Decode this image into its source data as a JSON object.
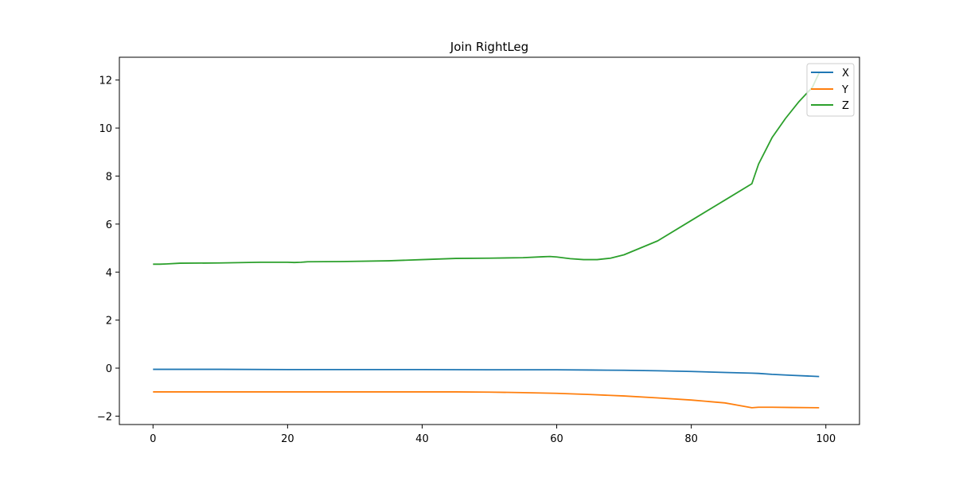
{
  "chart_data": {
    "type": "line",
    "title": "Join RightLeg",
    "xlabel": "",
    "ylabel": "",
    "xlim": [
      -5,
      105
    ],
    "ylim": [
      -2.35,
      12.95
    ],
    "xticks": [
      0,
      20,
      40,
      60,
      80,
      100
    ],
    "yticks": [
      -2,
      0,
      2,
      4,
      6,
      8,
      10,
      12
    ],
    "xtick_labels": [
      "0",
      "20",
      "40",
      "60",
      "80",
      "100"
    ],
    "ytick_labels": [
      "−2",
      "0",
      "2",
      "4",
      "6",
      "8",
      "10",
      "12"
    ],
    "grid": false,
    "legend_position": "top-right",
    "series": [
      {
        "name": "X",
        "color": "#1f77b4",
        "points": [
          [
            0,
            -0.05
          ],
          [
            10,
            -0.05
          ],
          [
            20,
            -0.06
          ],
          [
            30,
            -0.06
          ],
          [
            40,
            -0.06
          ],
          [
            50,
            -0.07
          ],
          [
            60,
            -0.07
          ],
          [
            65,
            -0.08
          ],
          [
            70,
            -0.09
          ],
          [
            75,
            -0.11
          ],
          [
            80,
            -0.14
          ],
          [
            85,
            -0.18
          ],
          [
            89,
            -0.21
          ],
          [
            90,
            -0.22
          ],
          [
            92,
            -0.26
          ],
          [
            95,
            -0.3
          ],
          [
            99,
            -0.35
          ]
        ]
      },
      {
        "name": "Y",
        "color": "#ff7f0e",
        "points": [
          [
            0,
            -0.99
          ],
          [
            10,
            -0.99
          ],
          [
            20,
            -0.99
          ],
          [
            30,
            -0.99
          ],
          [
            40,
            -0.99
          ],
          [
            45,
            -0.99
          ],
          [
            50,
            -1.0
          ],
          [
            55,
            -1.02
          ],
          [
            60,
            -1.05
          ],
          [
            65,
            -1.1
          ],
          [
            70,
            -1.16
          ],
          [
            75,
            -1.24
          ],
          [
            80,
            -1.33
          ],
          [
            85,
            -1.45
          ],
          [
            89,
            -1.65
          ],
          [
            90,
            -1.63
          ],
          [
            92,
            -1.63
          ],
          [
            95,
            -1.64
          ],
          [
            99,
            -1.65
          ]
        ]
      },
      {
        "name": "Z",
        "color": "#2ca02c",
        "points": [
          [
            0,
            4.33
          ],
          [
            1,
            4.33
          ],
          [
            2,
            4.34
          ],
          [
            4,
            4.37
          ],
          [
            10,
            4.38
          ],
          [
            16,
            4.41
          ],
          [
            20,
            4.41
          ],
          [
            21,
            4.4
          ],
          [
            22,
            4.41
          ],
          [
            23,
            4.43
          ],
          [
            28,
            4.44
          ],
          [
            35,
            4.47
          ],
          [
            40,
            4.52
          ],
          [
            45,
            4.57
          ],
          [
            50,
            4.58
          ],
          [
            55,
            4.6
          ],
          [
            58,
            4.64
          ],
          [
            59,
            4.65
          ],
          [
            60,
            4.63
          ],
          [
            62,
            4.56
          ],
          [
            64,
            4.52
          ],
          [
            66,
            4.52
          ],
          [
            68,
            4.58
          ],
          [
            70,
            4.72
          ],
          [
            75,
            5.3
          ],
          [
            80,
            6.15
          ],
          [
            85,
            7.0
          ],
          [
            89,
            7.68
          ],
          [
            90,
            8.5
          ],
          [
            92,
            9.6
          ],
          [
            94,
            10.4
          ],
          [
            96,
            11.1
          ],
          [
            98,
            11.7
          ],
          [
            99,
            12.3
          ]
        ]
      }
    ]
  }
}
